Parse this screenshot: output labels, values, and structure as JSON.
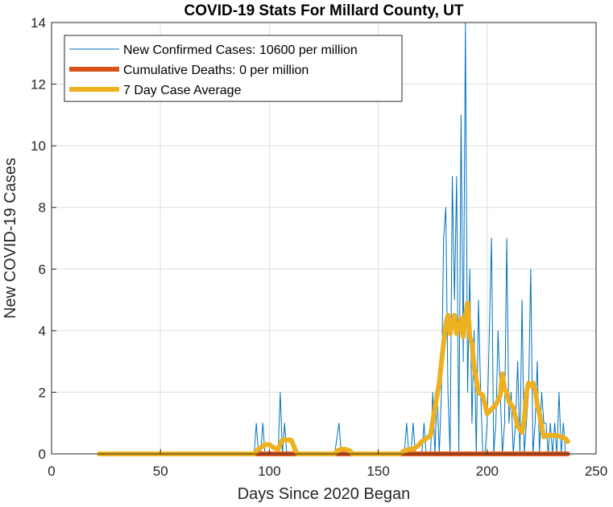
{
  "chart_data": {
    "type": "line",
    "title": "COVID-19 Stats For Millard County, UT",
    "xlabel": "Days Since 2020 Began",
    "ylabel": "New COVID-19 Cases",
    "xlim": [
      0,
      250
    ],
    "ylim": [
      0,
      14
    ],
    "xticks": [
      "0",
      "50",
      "100",
      "150",
      "200",
      "250"
    ],
    "yticks": [
      "0",
      "2",
      "4",
      "6",
      "8",
      "10",
      "12",
      "14"
    ],
    "grid": true,
    "legend_position": "top-left",
    "series": [
      {
        "name": "New Confirmed Cases: 10600 per million",
        "color": "#0072BD",
        "x": [
          22,
          93,
          94,
          95,
          96,
          97,
          98,
          99,
          100,
          101,
          102,
          103,
          104,
          105,
          106,
          107,
          108,
          109,
          110,
          111,
          112,
          113,
          114,
          115,
          130,
          132,
          133,
          134,
          135,
          160,
          162,
          163,
          164,
          165,
          166,
          167,
          168,
          169,
          170,
          171,
          172,
          173,
          174,
          175,
          176,
          177,
          178,
          179,
          180,
          181,
          182,
          183,
          184,
          185,
          186,
          187,
          188,
          189,
          190,
          191,
          192,
          193,
          194,
          195,
          196,
          197,
          198,
          199,
          200,
          201,
          202,
          203,
          204,
          205,
          206,
          207,
          208,
          209,
          210,
          211,
          212,
          213,
          214,
          215,
          216,
          217,
          218,
          219,
          220,
          221,
          222,
          223,
          224,
          225,
          226,
          227,
          228,
          229,
          230,
          231,
          232,
          233,
          234,
          235,
          236,
          237
        ],
        "y": [
          0,
          0,
          1,
          0,
          0,
          1,
          0,
          0,
          0,
          0,
          0,
          0,
          0,
          2,
          0,
          1,
          0,
          0,
          0,
          0,
          0,
          0,
          0,
          0,
          0,
          1,
          0,
          0,
          0,
          0,
          0,
          1,
          0,
          0,
          1,
          0,
          0,
          0,
          0,
          1,
          0,
          0,
          0,
          2,
          0,
          2,
          0,
          2,
          7,
          8,
          2,
          0,
          9,
          5,
          9,
          0,
          11,
          3,
          14,
          2,
          6,
          1,
          4,
          0,
          5,
          2,
          0,
          0,
          1,
          4,
          7,
          0,
          1,
          4,
          2,
          0,
          1,
          7,
          1,
          2,
          0,
          1,
          3,
          0,
          5,
          0,
          1,
          2,
          6,
          0,
          1,
          3,
          0,
          2,
          1,
          1,
          0,
          1,
          0,
          1,
          0,
          2,
          0,
          1,
          0,
          0
        ]
      },
      {
        "name": "Cumulative Deaths: 0 per million",
        "color": "#D95319",
        "x": [
          22,
          237
        ],
        "y": [
          0,
          0
        ]
      },
      {
        "name": "7 Day Case Average",
        "color": "#EDB120",
        "x": [
          22,
          93,
          94,
          95,
          96,
          98,
          100,
          102,
          104,
          105,
          106,
          108,
          110,
          111,
          112,
          113,
          120,
          130,
          131,
          133,
          135,
          137,
          138,
          160,
          162,
          164,
          166,
          168,
          170,
          172,
          174,
          176,
          178,
          180,
          181,
          182,
          183,
          184,
          185,
          186,
          187,
          188,
          189,
          190,
          191,
          192,
          193,
          194,
          196,
          198,
          200,
          202,
          204,
          206,
          207,
          208,
          209,
          210,
          212,
          214,
          216,
          217,
          218,
          219,
          220,
          221,
          222,
          223,
          224,
          225,
          226,
          227,
          228,
          230,
          232,
          234,
          236,
          237
        ],
        "y": [
          0,
          0,
          0.1,
          0.15,
          0.2,
          0.3,
          0.3,
          0.2,
          0.15,
          0.3,
          0.45,
          0.45,
          0.45,
          0.3,
          0.1,
          0,
          0,
          0,
          0.1,
          0.15,
          0.15,
          0.1,
          0,
          0,
          0.1,
          0.15,
          0.15,
          0.25,
          0.4,
          0.5,
          0.6,
          1.5,
          2.3,
          3.6,
          4.2,
          4.5,
          3.9,
          4.3,
          4.5,
          3.9,
          4.1,
          4.4,
          3.8,
          4.5,
          4.9,
          3.8,
          3.6,
          2.8,
          2.0,
          1.9,
          1.3,
          1.45,
          1.6,
          1.9,
          2.6,
          2.1,
          2.0,
          1.7,
          1.5,
          0.9,
          0.7,
          1.1,
          2.0,
          2.3,
          2.2,
          2.3,
          2.1,
          1.6,
          1.3,
          0.9,
          0.55,
          0.6,
          0.6,
          0.6,
          0.6,
          0.55,
          0.5,
          0.4
        ]
      }
    ]
  }
}
